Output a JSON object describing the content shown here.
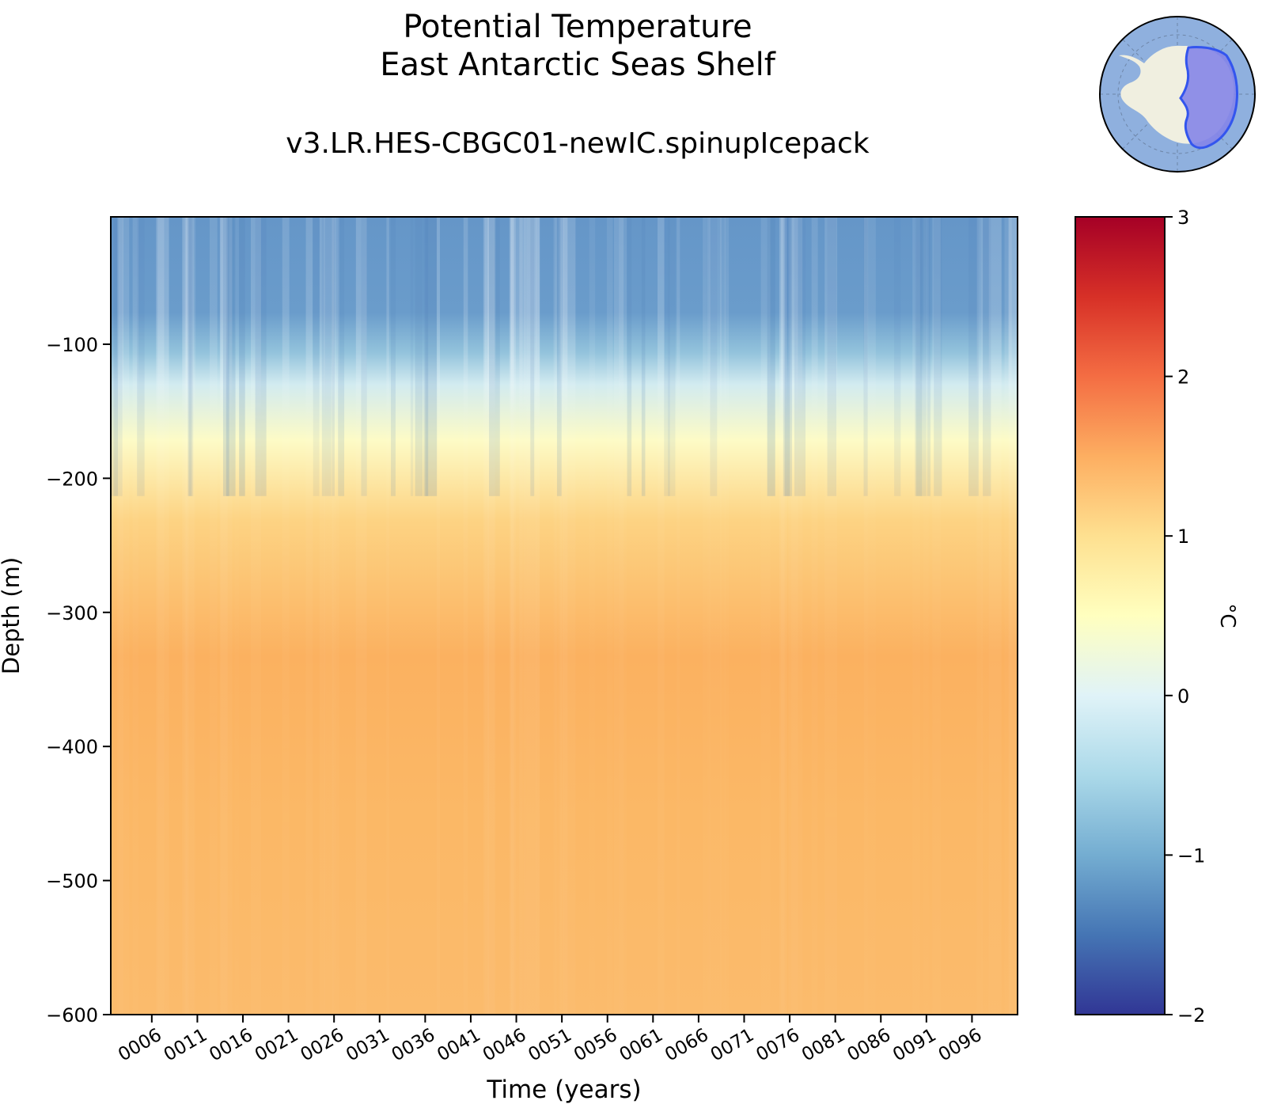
{
  "chart_data": {
    "type": "heatmap",
    "title": "Potential Temperature",
    "subtitle": "East Antarctic Seas Shelf",
    "run_name": "v3.LR.HES-CBGC01-newIC.spinupIcepack",
    "xlabel": "Time (years)",
    "ylabel": "Depth (m)",
    "x_tick_labels": [
      "0006",
      "0011",
      "0016",
      "0021",
      "0026",
      "0031",
      "0036",
      "0041",
      "0046",
      "0051",
      "0056",
      "0061",
      "0066",
      "0071",
      "0076",
      "0081",
      "0086",
      "0091",
      "0096"
    ],
    "x_tick_values": [
      6,
      11,
      16,
      21,
      26,
      31,
      36,
      41,
      46,
      51,
      56,
      61,
      66,
      71,
      76,
      81,
      86,
      91,
      96
    ],
    "xlim": [
      1.5,
      101
    ],
    "y_tick_labels": [
      "−100",
      "−200",
      "−300",
      "−400",
      "−500",
      "−600"
    ],
    "y_tick_values": [
      -100,
      -200,
      -300,
      -400,
      -500,
      -600
    ],
    "ylim": [
      -600,
      -5
    ],
    "colorbar": {
      "label": "°C",
      "range": [
        -2,
        3
      ],
      "tick_values": [
        -2,
        -1,
        0,
        1,
        2,
        3
      ],
      "tick_labels": [
        "−2",
        "−1",
        "0",
        "1",
        "2",
        "3"
      ],
      "colormap": "RdYlBu_r"
    },
    "depth_profile_mean": [
      {
        "depth": -5,
        "temp": -0.9
      },
      {
        "depth": -100,
        "temp": -0.9
      },
      {
        "depth": -150,
        "temp": -0.3
      },
      {
        "depth": -175,
        "temp": 0.2
      },
      {
        "depth": -200,
        "temp": 0.6
      },
      {
        "depth": -250,
        "temp": 1.0
      },
      {
        "depth": -300,
        "temp": 1.25
      },
      {
        "depth": -350,
        "temp": 1.45
      },
      {
        "depth": -400,
        "temp": 1.4
      },
      {
        "depth": -500,
        "temp": 1.35
      },
      {
        "depth": -600,
        "temp": 1.3
      }
    ],
    "inset_map": "antarctic-region-map"
  }
}
